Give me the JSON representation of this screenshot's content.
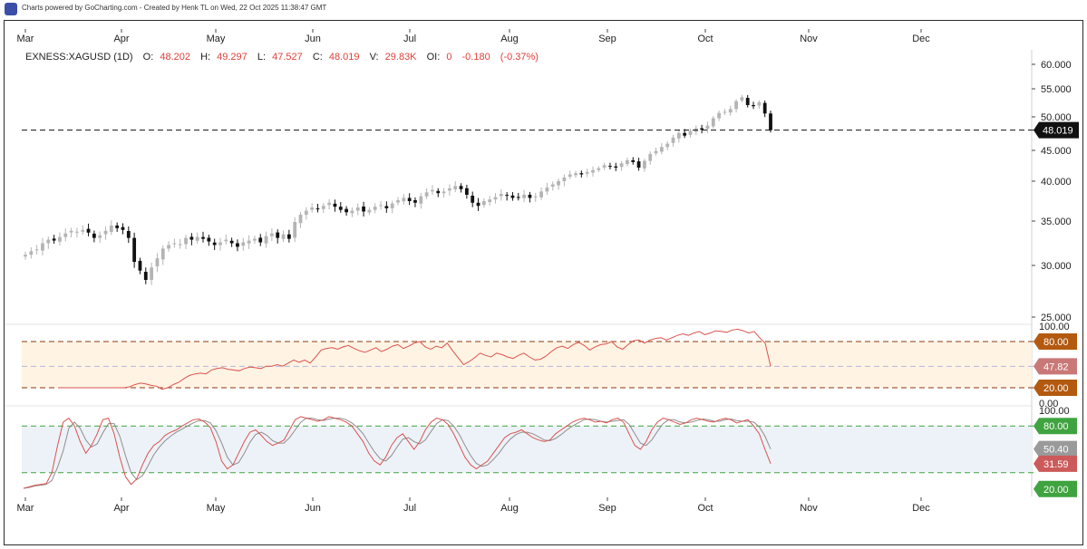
{
  "header": {
    "credit": "Charts powered by GoCharting.com - Created by Henk TL on Wed, 22 Oct 2025 11:38:47 GMT"
  },
  "chart_data": [
    {
      "type": "candlestick",
      "symbol": "EXNESS:XAGUSD (1D)",
      "ohlcv": {
        "O_label": "O:",
        "O": "48.202",
        "H_label": "H:",
        "H": "49.297",
        "L_label": "L:",
        "L": "47.527",
        "C_label": "C:",
        "C": "48.019",
        "V_label": "V:",
        "V": "29.83K",
        "OI_label": "OI:",
        "OI": "0",
        "change": "-0.180",
        "change_pct": "(-0.37%)"
      },
      "months": [
        "Mar",
        "Apr",
        "May",
        "Jun",
        "Jul",
        "Aug",
        "Sep",
        "Oct",
        "Nov",
        "Dec"
      ],
      "y_ticks": [
        "60.000",
        "55.000",
        "50.000",
        "45.000",
        "40.000",
        "35.000",
        "30.000",
        "25.000"
      ],
      "ylim": [
        25,
        60
      ],
      "last_price": "48.019",
      "last_price_value": 48.019,
      "closes": [
        31.2,
        31.6,
        31.8,
        32.5,
        32.9,
        32.8,
        33.2,
        33.6,
        33.9,
        33.8,
        34.0,
        33.7,
        33.1,
        33.4,
        33.9,
        34.5,
        34.2,
        34.0,
        33.1,
        30.4,
        29.5,
        28.6,
        29.8,
        30.8,
        31.9,
        32.3,
        32.5,
        32.4,
        33.1,
        32.9,
        33.2,
        33.0,
        32.7,
        32.3,
        32.6,
        32.9,
        32.5,
        32.1,
        32.6,
        32.8,
        33.0,
        32.6,
        33.3,
        33.6,
        33.1,
        33.5,
        33.0,
        34.9,
        35.8,
        36.3,
        36.7,
        36.5,
        36.9,
        37.3,
        36.8,
        36.4,
        36.1,
        36.3,
        36.7,
        36.2,
        36.4,
        36.8,
        37.0,
        36.6,
        37.2,
        37.6,
        37.9,
        37.5,
        37.3,
        38.1,
        38.6,
        38.9,
        38.5,
        38.7,
        39.1,
        39.4,
        39.0,
        38.3,
        37.3,
        36.9,
        37.5,
        37.7,
        38.0,
        38.4,
        38.2,
        37.9,
        38.0,
        38.3,
        37.9,
        38.1,
        38.7,
        39.2,
        39.6,
        40.0,
        40.6,
        41.1,
        41.3,
        41.1,
        41.5,
        41.8,
        42.1,
        42.6,
        42.4,
        42.2,
        42.9,
        43.4,
        43.1,
        42.2,
        43.3,
        44.4,
        44.9,
        45.5,
        46.0,
        46.9,
        47.6,
        47.2,
        47.9,
        48.3,
        48.1,
        48.7,
        49.8,
        50.7,
        50.9,
        51.4,
        52.8,
        53.5,
        52.1,
        51.9,
        52.6,
        50.6,
        48.02
      ],
      "ref_line": "dashed at last price",
      "grid": false
    },
    {
      "type": "line",
      "indicator": "RSI",
      "y_ticks": [
        "100.00",
        "0.00"
      ],
      "ylim": [
        0,
        100
      ],
      "levels": [
        {
          "label": "80.00",
          "value": 80
        },
        {
          "label": "20.00",
          "value": 20
        }
      ],
      "current": {
        "label": "47.82",
        "value": 47.82
      },
      "values": [
        20,
        20,
        20,
        20,
        20,
        20,
        20,
        20,
        20,
        20,
        20,
        20,
        20,
        21,
        24,
        26,
        25,
        23,
        22,
        18,
        20,
        24,
        27,
        32,
        36,
        38,
        39,
        38,
        43,
        45,
        46,
        44,
        43,
        42,
        45,
        47,
        46,
        45,
        48,
        48,
        50,
        48,
        52,
        56,
        53,
        56,
        52,
        60,
        69,
        71,
        72,
        70,
        73,
        75,
        71,
        68,
        66,
        69,
        72,
        67,
        70,
        74,
        76,
        71,
        74,
        78,
        80,
        73,
        70,
        74,
        72,
        78,
        68,
        59,
        50,
        54,
        59,
        65,
        62,
        60,
        65,
        63,
        60,
        58,
        62,
        65,
        60,
        56,
        57,
        61,
        67,
        72,
        74,
        71,
        76,
        79,
        75,
        69,
        73,
        76,
        77,
        80,
        73,
        70,
        76,
        81,
        82,
        78,
        82,
        84,
        85,
        82,
        85,
        88,
        90,
        88,
        91,
        93,
        89,
        91,
        94,
        93,
        92,
        95,
        96,
        94,
        91,
        93,
        85,
        78,
        47.82
      ]
    },
    {
      "type": "line",
      "indicator": "Stochastic",
      "y_ticks": [
        "100.00"
      ],
      "ylim": [
        0,
        100
      ],
      "levels": [
        {
          "label": "80.00",
          "value": 80
        },
        {
          "label": "20.00",
          "value": 20
        }
      ],
      "current": [
        {
          "label": "50.40",
          "value": 50.4
        },
        {
          "label": "31.59",
          "value": 31.59
        }
      ],
      "k_values": [
        0,
        2,
        4,
        5,
        6,
        20,
        55,
        85,
        90,
        80,
        60,
        45,
        55,
        70,
        88,
        90,
        70,
        40,
        15,
        5,
        12,
        30,
        45,
        55,
        60,
        68,
        72,
        75,
        80,
        84,
        88,
        89,
        85,
        78,
        60,
        35,
        25,
        30,
        45,
        60,
        72,
        75,
        68,
        60,
        55,
        58,
        62,
        75,
        88,
        92,
        90,
        88,
        86,
        88,
        92,
        90,
        88,
        85,
        80,
        70,
        60,
        45,
        35,
        30,
        40,
        55,
        65,
        70,
        60,
        50,
        60,
        75,
        85,
        90,
        88,
        82,
        70,
        55,
        40,
        30,
        25,
        30,
        35,
        45,
        55,
        65,
        70,
        72,
        75,
        70,
        65,
        62,
        60,
        62,
        70,
        75,
        80,
        85,
        88,
        90,
        88,
        85,
        86,
        84,
        88,
        90,
        85,
        70,
        55,
        50,
        60,
        75,
        85,
        90,
        88,
        85,
        82,
        84,
        88,
        90,
        88,
        86,
        85,
        88,
        90,
        88,
        84,
        86,
        88,
        80,
        70,
        50,
        31.59
      ],
      "d_values": [
        0,
        1,
        3,
        4,
        5,
        10,
        27,
        48,
        77,
        85,
        77,
        62,
        53,
        57,
        71,
        83,
        83,
        67,
        42,
        20,
        11,
        16,
        29,
        43,
        53,
        61,
        67,
        72,
        76,
        80,
        84,
        87,
        87,
        84,
        74,
        58,
        40,
        30,
        33,
        45,
        59,
        69,
        72,
        68,
        61,
        58,
        58,
        65,
        75,
        85,
        90,
        90,
        88,
        87,
        89,
        90,
        90,
        88,
        84,
        78,
        70,
        58,
        47,
        38,
        35,
        42,
        53,
        63,
        65,
        60,
        57,
        62,
        73,
        83,
        88,
        87,
        80,
        69,
        55,
        42,
        32,
        28,
        30,
        37,
        45,
        55,
        63,
        69,
        72,
        72,
        70,
        66,
        62,
        61,
        64,
        69,
        75,
        80,
        84,
        88,
        89,
        88,
        86,
        85,
        86,
        87,
        88,
        82,
        70,
        58,
        55,
        62,
        73,
        83,
        88,
        88,
        85,
        84,
        85,
        87,
        89,
        88,
        86,
        86,
        88,
        89,
        87,
        86,
        86,
        85,
        79,
        67,
        50.4
      ]
    }
  ],
  "colors": {
    "up_candle": "#b4b4b4",
    "down_candle": "#111111",
    "rsi_line": "#d9534f",
    "rsi_band": "#fff3e3",
    "rsi_level": "#8b3a0f",
    "stoch_k": "#d9534f",
    "stoch_d": "#8e8e8e",
    "stoch_band": "#edf2f8",
    "stoch_level": "#3fa33f",
    "ohlc_value": "#e0413a",
    "tag_80": "#b35a10",
    "tag_rsi": "#c97878",
    "tag_stoch_d": "#9a9a9a",
    "tag_stoch_k": "#cc5a5a",
    "tag_20_green": "#3fa33f"
  }
}
